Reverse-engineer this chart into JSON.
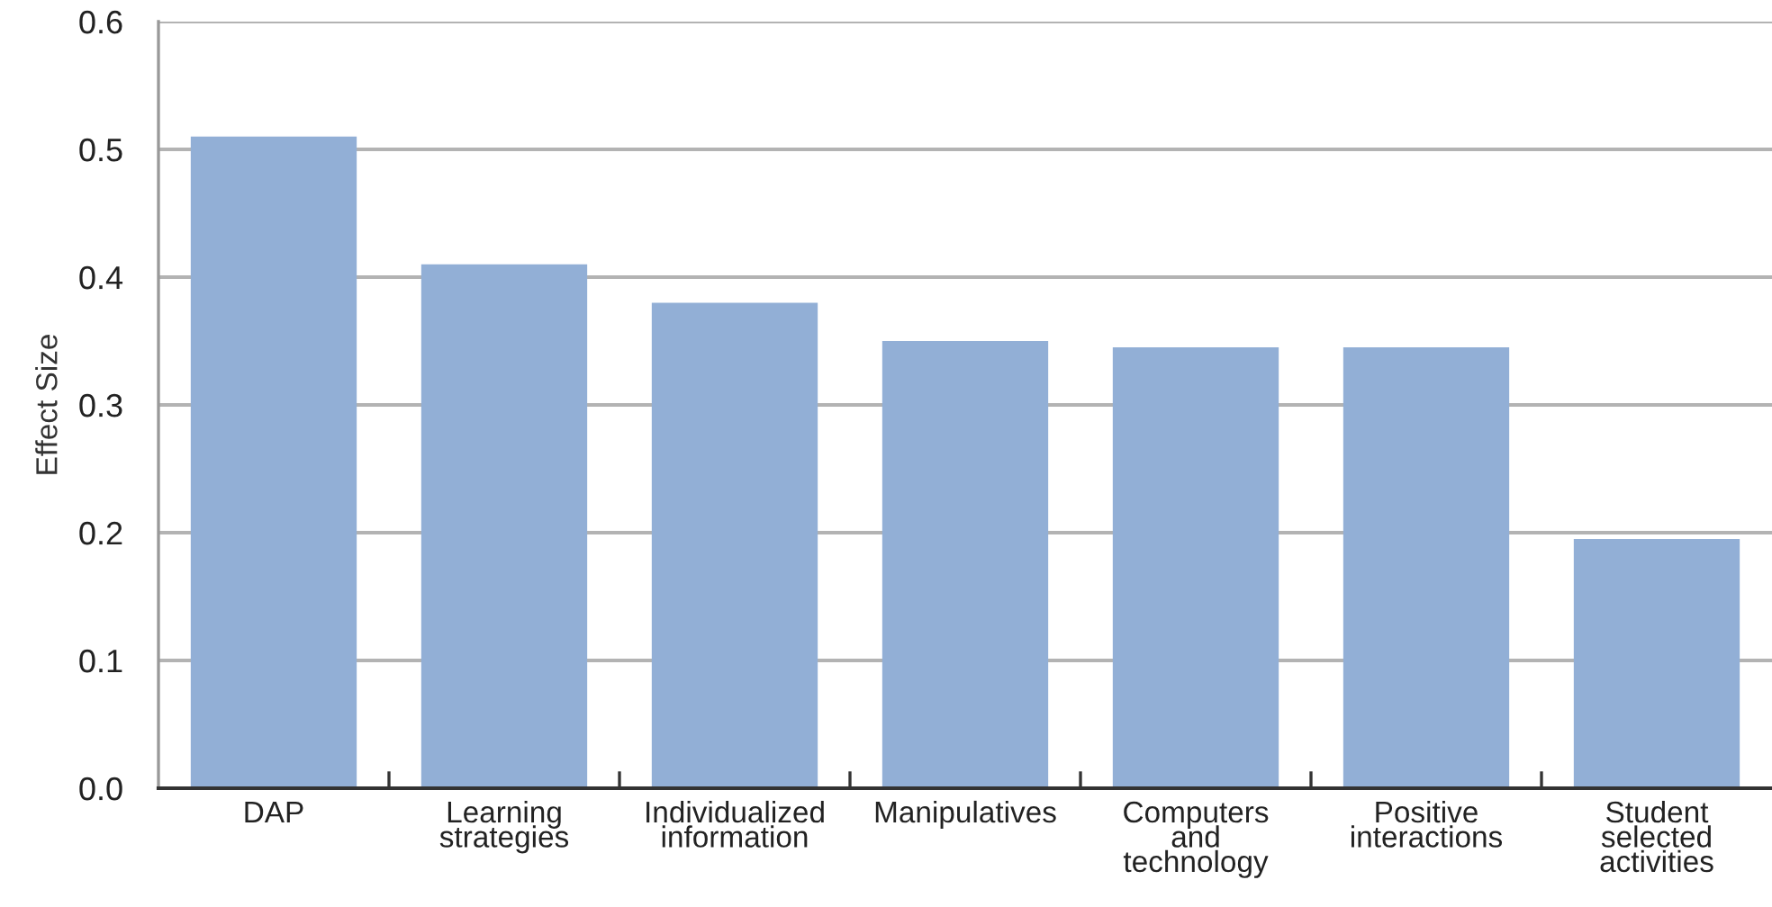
{
  "chart_data": {
    "type": "bar",
    "ylabel": "Effect Size",
    "categories": [
      "DAP",
      "Learning\nstrategies",
      "Individualized\ninformation",
      "Manipulatives",
      "Computers\nand\ntechnology",
      "Positive\ninteractions",
      "Student\nselected\nactivities"
    ],
    "values": [
      0.51,
      0.41,
      0.38,
      0.35,
      0.345,
      0.345,
      0.195
    ],
    "color": "#92afd6",
    "ylim": [
      0.0,
      0.6
    ],
    "yticks": [
      {
        "value": 0.0,
        "label": "0.0"
      },
      {
        "value": 0.1,
        "label": "0.1"
      },
      {
        "value": 0.2,
        "label": "0.2"
      },
      {
        "value": 0.3,
        "label": "0.3"
      },
      {
        "value": 0.4,
        "label": "0.4"
      },
      {
        "value": 0.5,
        "label": "0.5"
      },
      {
        "value": 0.6,
        "label": "0.6"
      }
    ],
    "grid": "y"
  }
}
